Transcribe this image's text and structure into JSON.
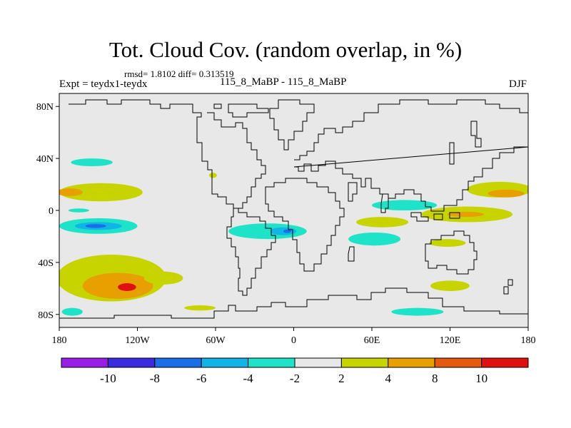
{
  "header": {
    "title": "Tot. Cloud Cov. (random overlap, in %)",
    "stats": "rmsd= 1.8102 diff= 0.313519",
    "expt": "Expt = teydx1-teydx",
    "experiments": "115_8_MaBP - 115_8_MaBP",
    "season": "DJF"
  },
  "map": {
    "lon_ticks": [
      "180",
      "120W",
      "60W",
      "0",
      "60E",
      "120E",
      "180"
    ],
    "lat_ticks": [
      "80N",
      "40N",
      "0",
      "40S",
      "80S"
    ],
    "lon_range": [
      -180,
      180
    ],
    "lat_range": [
      -90,
      90
    ],
    "background_color": "#e8e8e8"
  },
  "colorbar": {
    "levels": [
      "-10",
      "-8",
      "-6",
      "-4",
      "-2",
      "2",
      "4",
      "8",
      "10"
    ],
    "colors": [
      "#9a1fe6",
      "#3a2be0",
      "#1a6ee6",
      "#10b4e6",
      "#1ee3c8",
      "#e8e8e8",
      "#c8d400",
      "#e8a000",
      "#e45a10",
      "#e01010"
    ]
  },
  "anomalies": [
    {
      "level": "4",
      "color": "#c8d400",
      "lon": -140,
      "lat": -52,
      "rlon": 42,
      "rlat": 18
    },
    {
      "level": "8",
      "color": "#e8a000",
      "lon": -135,
      "lat": -58,
      "rlon": 27,
      "rlat": 10
    },
    {
      "level": "10",
      "color": "#e01010",
      "lon": -128,
      "lat": -59,
      "rlon": 7,
      "rlat": 3
    },
    {
      "level": "4",
      "color": "#c8d400",
      "lon": -148,
      "lat": 14,
      "rlon": 32,
      "rlat": 7
    },
    {
      "level": "8",
      "color": "#e8a000",
      "lon": -172,
      "lat": 14,
      "rlon": 10,
      "rlat": 3
    },
    {
      "level": "-4",
      "color": "#1ee3c8",
      "lon": -155,
      "lat": 37,
      "rlon": 16,
      "rlat": 3
    },
    {
      "level": "-4",
      "color": "#1ee3c8",
      "lon": -150,
      "lat": -12,
      "rlon": 30,
      "rlat": 6
    },
    {
      "level": "-6",
      "color": "#10b4e6",
      "lon": -150,
      "lat": -12,
      "rlon": 18,
      "rlat": 3
    },
    {
      "level": "-8",
      "color": "#1a6ee6",
      "lon": -152,
      "lat": -12,
      "rlon": 8,
      "rlat": 1.5
    },
    {
      "level": "4",
      "color": "#c8d400",
      "lon": -100,
      "lat": -52,
      "rlon": 15,
      "rlat": 5
    },
    {
      "level": "-4",
      "color": "#1ee3c8",
      "lon": -20,
      "lat": -16,
      "rlon": 30,
      "rlat": 6
    },
    {
      "level": "-6",
      "color": "#10b4e6",
      "lon": -8,
      "lat": -16,
      "rlon": 10,
      "rlat": 3
    },
    {
      "level": "-8",
      "color": "#1a6ee6",
      "lon": -5,
      "lat": -16,
      "rlon": 3,
      "rlat": 1.3
    },
    {
      "level": "-4",
      "color": "#1ee3c8",
      "lon": 62,
      "lat": -22,
      "rlon": 20,
      "rlat": 5
    },
    {
      "level": "4",
      "color": "#c8d400",
      "lon": 68,
      "lat": -9,
      "rlon": 20,
      "rlat": 4
    },
    {
      "level": "-4",
      "color": "#1ee3c8",
      "lon": 85,
      "lat": 4,
      "rlon": 25,
      "rlat": 4
    },
    {
      "level": "4",
      "color": "#c8d400",
      "lon": 133,
      "lat": -3,
      "rlon": 35,
      "rlat": 6
    },
    {
      "level": "8",
      "color": "#e8a000",
      "lon": 132,
      "lat": -3,
      "rlon": 14,
      "rlat": 2
    },
    {
      "level": "4",
      "color": "#c8d400",
      "lon": 158,
      "lat": 16,
      "rlon": 25,
      "rlat": 6
    },
    {
      "level": "8",
      "color": "#e8a000",
      "lon": 163,
      "lat": 13,
      "rlon": 14,
      "rlat": 3
    },
    {
      "level": "4",
      "color": "#c8d400",
      "lon": 118,
      "lat": -25,
      "rlon": 14,
      "rlat": 3
    },
    {
      "level": "4",
      "color": "#c8d400",
      "lon": 120,
      "lat": -58,
      "rlon": 15,
      "rlat": 4
    },
    {
      "level": "-4",
      "color": "#1ee3c8",
      "lon": -170,
      "lat": -78,
      "rlon": 8,
      "rlat": 3
    },
    {
      "level": "-4",
      "color": "#1ee3c8",
      "lon": 95,
      "lat": -78,
      "rlon": 20,
      "rlat": 3
    },
    {
      "level": "4",
      "color": "#c8d400",
      "lon": -72,
      "lat": -75,
      "rlon": 12,
      "rlat": 2
    },
    {
      "level": "4",
      "color": "#c8d400",
      "lon": -62,
      "lat": 27,
      "rlon": 3,
      "rlat": 2
    },
    {
      "level": "-4",
      "color": "#1ee3c8",
      "lon": -165,
      "lat": 0,
      "rlon": 8,
      "rlat": 1.5
    }
  ]
}
